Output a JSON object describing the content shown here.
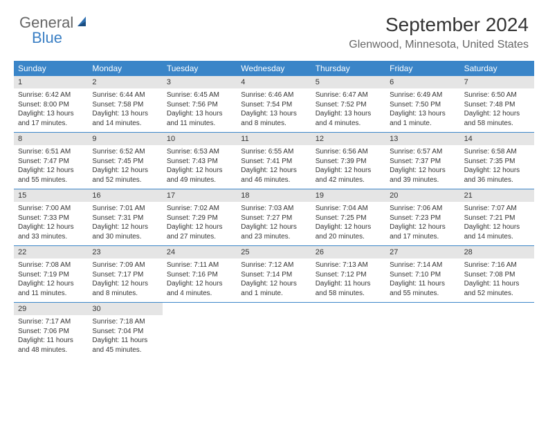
{
  "logo": {
    "general": "General",
    "blue": "Blue"
  },
  "title": "September 2024",
  "location": "Glenwood, Minnesota, United States",
  "colors": {
    "header_bg": "#3a85c8",
    "header_text": "#ffffff",
    "daynum_bg": "#e5e5e5",
    "week_divider": "#3a85c8",
    "text": "#333333",
    "logo_gray": "#666666",
    "logo_blue": "#3a7fc4"
  },
  "daynames": [
    "Sunday",
    "Monday",
    "Tuesday",
    "Wednesday",
    "Thursday",
    "Friday",
    "Saturday"
  ],
  "weeks": [
    [
      {
        "n": "1",
        "sr": "Sunrise: 6:42 AM",
        "ss": "Sunset: 8:00 PM",
        "d1": "Daylight: 13 hours",
        "d2": "and 17 minutes."
      },
      {
        "n": "2",
        "sr": "Sunrise: 6:44 AM",
        "ss": "Sunset: 7:58 PM",
        "d1": "Daylight: 13 hours",
        "d2": "and 14 minutes."
      },
      {
        "n": "3",
        "sr": "Sunrise: 6:45 AM",
        "ss": "Sunset: 7:56 PM",
        "d1": "Daylight: 13 hours",
        "d2": "and 11 minutes."
      },
      {
        "n": "4",
        "sr": "Sunrise: 6:46 AM",
        "ss": "Sunset: 7:54 PM",
        "d1": "Daylight: 13 hours",
        "d2": "and 8 minutes."
      },
      {
        "n": "5",
        "sr": "Sunrise: 6:47 AM",
        "ss": "Sunset: 7:52 PM",
        "d1": "Daylight: 13 hours",
        "d2": "and 4 minutes."
      },
      {
        "n": "6",
        "sr": "Sunrise: 6:49 AM",
        "ss": "Sunset: 7:50 PM",
        "d1": "Daylight: 13 hours",
        "d2": "and 1 minute."
      },
      {
        "n": "7",
        "sr": "Sunrise: 6:50 AM",
        "ss": "Sunset: 7:48 PM",
        "d1": "Daylight: 12 hours",
        "d2": "and 58 minutes."
      }
    ],
    [
      {
        "n": "8",
        "sr": "Sunrise: 6:51 AM",
        "ss": "Sunset: 7:47 PM",
        "d1": "Daylight: 12 hours",
        "d2": "and 55 minutes."
      },
      {
        "n": "9",
        "sr": "Sunrise: 6:52 AM",
        "ss": "Sunset: 7:45 PM",
        "d1": "Daylight: 12 hours",
        "d2": "and 52 minutes."
      },
      {
        "n": "10",
        "sr": "Sunrise: 6:53 AM",
        "ss": "Sunset: 7:43 PM",
        "d1": "Daylight: 12 hours",
        "d2": "and 49 minutes."
      },
      {
        "n": "11",
        "sr": "Sunrise: 6:55 AM",
        "ss": "Sunset: 7:41 PM",
        "d1": "Daylight: 12 hours",
        "d2": "and 46 minutes."
      },
      {
        "n": "12",
        "sr": "Sunrise: 6:56 AM",
        "ss": "Sunset: 7:39 PM",
        "d1": "Daylight: 12 hours",
        "d2": "and 42 minutes."
      },
      {
        "n": "13",
        "sr": "Sunrise: 6:57 AM",
        "ss": "Sunset: 7:37 PM",
        "d1": "Daylight: 12 hours",
        "d2": "and 39 minutes."
      },
      {
        "n": "14",
        "sr": "Sunrise: 6:58 AM",
        "ss": "Sunset: 7:35 PM",
        "d1": "Daylight: 12 hours",
        "d2": "and 36 minutes."
      }
    ],
    [
      {
        "n": "15",
        "sr": "Sunrise: 7:00 AM",
        "ss": "Sunset: 7:33 PM",
        "d1": "Daylight: 12 hours",
        "d2": "and 33 minutes."
      },
      {
        "n": "16",
        "sr": "Sunrise: 7:01 AM",
        "ss": "Sunset: 7:31 PM",
        "d1": "Daylight: 12 hours",
        "d2": "and 30 minutes."
      },
      {
        "n": "17",
        "sr": "Sunrise: 7:02 AM",
        "ss": "Sunset: 7:29 PM",
        "d1": "Daylight: 12 hours",
        "d2": "and 27 minutes."
      },
      {
        "n": "18",
        "sr": "Sunrise: 7:03 AM",
        "ss": "Sunset: 7:27 PM",
        "d1": "Daylight: 12 hours",
        "d2": "and 23 minutes."
      },
      {
        "n": "19",
        "sr": "Sunrise: 7:04 AM",
        "ss": "Sunset: 7:25 PM",
        "d1": "Daylight: 12 hours",
        "d2": "and 20 minutes."
      },
      {
        "n": "20",
        "sr": "Sunrise: 7:06 AM",
        "ss": "Sunset: 7:23 PM",
        "d1": "Daylight: 12 hours",
        "d2": "and 17 minutes."
      },
      {
        "n": "21",
        "sr": "Sunrise: 7:07 AM",
        "ss": "Sunset: 7:21 PM",
        "d1": "Daylight: 12 hours",
        "d2": "and 14 minutes."
      }
    ],
    [
      {
        "n": "22",
        "sr": "Sunrise: 7:08 AM",
        "ss": "Sunset: 7:19 PM",
        "d1": "Daylight: 12 hours",
        "d2": "and 11 minutes."
      },
      {
        "n": "23",
        "sr": "Sunrise: 7:09 AM",
        "ss": "Sunset: 7:17 PM",
        "d1": "Daylight: 12 hours",
        "d2": "and 8 minutes."
      },
      {
        "n": "24",
        "sr": "Sunrise: 7:11 AM",
        "ss": "Sunset: 7:16 PM",
        "d1": "Daylight: 12 hours",
        "d2": "and 4 minutes."
      },
      {
        "n": "25",
        "sr": "Sunrise: 7:12 AM",
        "ss": "Sunset: 7:14 PM",
        "d1": "Daylight: 12 hours",
        "d2": "and 1 minute."
      },
      {
        "n": "26",
        "sr": "Sunrise: 7:13 AM",
        "ss": "Sunset: 7:12 PM",
        "d1": "Daylight: 11 hours",
        "d2": "and 58 minutes."
      },
      {
        "n": "27",
        "sr": "Sunrise: 7:14 AM",
        "ss": "Sunset: 7:10 PM",
        "d1": "Daylight: 11 hours",
        "d2": "and 55 minutes."
      },
      {
        "n": "28",
        "sr": "Sunrise: 7:16 AM",
        "ss": "Sunset: 7:08 PM",
        "d1": "Daylight: 11 hours",
        "d2": "and 52 minutes."
      }
    ],
    [
      {
        "n": "29",
        "sr": "Sunrise: 7:17 AM",
        "ss": "Sunset: 7:06 PM",
        "d1": "Daylight: 11 hours",
        "d2": "and 48 minutes."
      },
      {
        "n": "30",
        "sr": "Sunrise: 7:18 AM",
        "ss": "Sunset: 7:04 PM",
        "d1": "Daylight: 11 hours",
        "d2": "and 45 minutes."
      },
      null,
      null,
      null,
      null,
      null
    ]
  ]
}
